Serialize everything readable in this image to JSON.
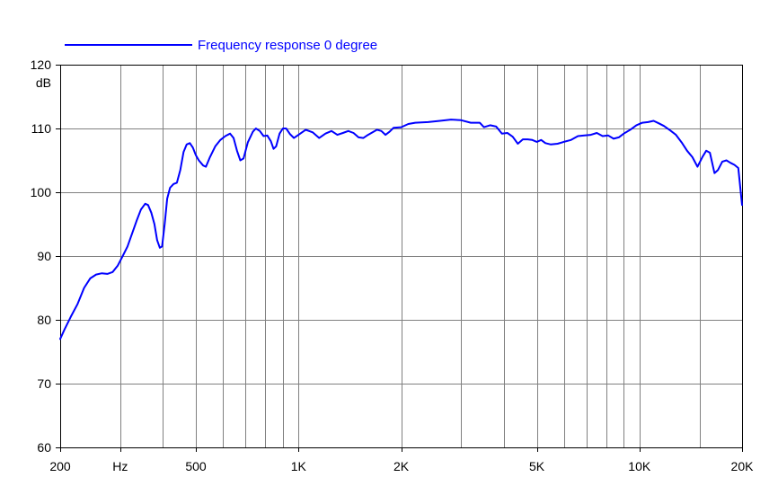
{
  "chart_data": {
    "type": "line",
    "title": "",
    "xlabel": "",
    "ylabel": "dB",
    "x_scale": "log",
    "xlim": [
      200,
      20000
    ],
    "ylim": [
      60,
      120
    ],
    "grid": true,
    "legend_position": "top-left",
    "x_ticks": [
      {
        "value": 200,
        "label": "200"
      },
      {
        "value": 300,
        "label": "Hz"
      },
      {
        "value": 500,
        "label": "500"
      },
      {
        "value": 1000,
        "label": "1K"
      },
      {
        "value": 2000,
        "label": "2K"
      },
      {
        "value": 5000,
        "label": "5K"
      },
      {
        "value": 10000,
        "label": "10K"
      },
      {
        "value": 20000,
        "label": "20K"
      }
    ],
    "x_gridlines": [
      300,
      400,
      500,
      600,
      700,
      800,
      900,
      1000,
      2000,
      3000,
      4000,
      5000,
      6000,
      7000,
      8000,
      9000,
      10000,
      15000
    ],
    "y_ticks": [
      60,
      70,
      80,
      90,
      100,
      110,
      120
    ],
    "series": [
      {
        "name": "Frequency response 0 degree",
        "color": "#0000ff",
        "points": [
          [
            200,
            77
          ],
          [
            206,
            78.5
          ],
          [
            215,
            80.5
          ],
          [
            225,
            82.5
          ],
          [
            235,
            85
          ],
          [
            245,
            86.5
          ],
          [
            255,
            87.1
          ],
          [
            265,
            87.3
          ],
          [
            275,
            87.2
          ],
          [
            285,
            87.5
          ],
          [
            295,
            88.5
          ],
          [
            305,
            90
          ],
          [
            315,
            91.5
          ],
          [
            325,
            93.5
          ],
          [
            335,
            95.5
          ],
          [
            345,
            97.3
          ],
          [
            355,
            98.2
          ],
          [
            362,
            98
          ],
          [
            370,
            96.8
          ],
          [
            378,
            95
          ],
          [
            385,
            92.5
          ],
          [
            392,
            91.3
          ],
          [
            398,
            91.5
          ],
          [
            405,
            95
          ],
          [
            412,
            99
          ],
          [
            420,
            100.7
          ],
          [
            430,
            101.3
          ],
          [
            440,
            101.5
          ],
          [
            450,
            103.5
          ],
          [
            460,
            106.3
          ],
          [
            470,
            107.5
          ],
          [
            480,
            107.7
          ],
          [
            490,
            107
          ],
          [
            500,
            105.8
          ],
          [
            510,
            105
          ],
          [
            525,
            104.2
          ],
          [
            535,
            104
          ],
          [
            550,
            105.5
          ],
          [
            570,
            107.2
          ],
          [
            590,
            108.2
          ],
          [
            610,
            108.8
          ],
          [
            630,
            109.2
          ],
          [
            645,
            108.5
          ],
          [
            660,
            106.5
          ],
          [
            675,
            105
          ],
          [
            690,
            105.3
          ],
          [
            710,
            107.8
          ],
          [
            735,
            109.5
          ],
          [
            750,
            110
          ],
          [
            770,
            109.6
          ],
          [
            790,
            108.8
          ],
          [
            810,
            108.9
          ],
          [
            830,
            108
          ],
          [
            845,
            106.8
          ],
          [
            860,
            107.2
          ],
          [
            880,
            109.2
          ],
          [
            900,
            110
          ],
          [
            920,
            110
          ],
          [
            945,
            109.1
          ],
          [
            970,
            108.5
          ],
          [
            1000,
            109
          ],
          [
            1050,
            109.8
          ],
          [
            1100,
            109.4
          ],
          [
            1150,
            108.5
          ],
          [
            1200,
            109.2
          ],
          [
            1250,
            109.6
          ],
          [
            1300,
            109
          ],
          [
            1350,
            109.3
          ],
          [
            1400,
            109.6
          ],
          [
            1450,
            109.3
          ],
          [
            1500,
            108.6
          ],
          [
            1550,
            108.5
          ],
          [
            1600,
            109
          ],
          [
            1700,
            109.8
          ],
          [
            1750,
            109.6
          ],
          [
            1800,
            109
          ],
          [
            1850,
            109.5
          ],
          [
            1900,
            110.1
          ],
          [
            2000,
            110.2
          ],
          [
            2100,
            110.7
          ],
          [
            2200,
            110.9
          ],
          [
            2400,
            111
          ],
          [
            2600,
            111.2
          ],
          [
            2800,
            111.4
          ],
          [
            3000,
            111.3
          ],
          [
            3200,
            110.9
          ],
          [
            3400,
            110.9
          ],
          [
            3500,
            110.2
          ],
          [
            3650,
            110.5
          ],
          [
            3800,
            110.3
          ],
          [
            3950,
            109.2
          ],
          [
            4100,
            109.3
          ],
          [
            4250,
            108.7
          ],
          [
            4400,
            107.6
          ],
          [
            4550,
            108.3
          ],
          [
            4700,
            108.3
          ],
          [
            4850,
            108.2
          ],
          [
            5000,
            107.9
          ],
          [
            5150,
            108.2
          ],
          [
            5300,
            107.7
          ],
          [
            5500,
            107.5
          ],
          [
            5750,
            107.6
          ],
          [
            6000,
            107.9
          ],
          [
            6300,
            108.2
          ],
          [
            6600,
            108.8
          ],
          [
            6900,
            108.9
          ],
          [
            7200,
            109
          ],
          [
            7500,
            109.3
          ],
          [
            7800,
            108.8
          ],
          [
            8100,
            108.9
          ],
          [
            8400,
            108.4
          ],
          [
            8700,
            108.6
          ],
          [
            9000,
            109.2
          ],
          [
            9400,
            109.8
          ],
          [
            9800,
            110.5
          ],
          [
            10200,
            110.9
          ],
          [
            10600,
            111
          ],
          [
            11000,
            111.2
          ],
          [
            11400,
            110.8
          ],
          [
            11800,
            110.4
          ],
          [
            12300,
            109.7
          ],
          [
            12800,
            109
          ],
          [
            13300,
            107.8
          ],
          [
            13800,
            106.5
          ],
          [
            14300,
            105.5
          ],
          [
            14800,
            104
          ],
          [
            15300,
            105.5
          ],
          [
            15700,
            106.5
          ],
          [
            16100,
            106.2
          ],
          [
            16600,
            103
          ],
          [
            17000,
            103.5
          ],
          [
            17500,
            104.8
          ],
          [
            18000,
            105
          ],
          [
            18500,
            104.6
          ],
          [
            19000,
            104.3
          ],
          [
            19500,
            103.8
          ],
          [
            20000,
            98
          ]
        ]
      }
    ]
  }
}
